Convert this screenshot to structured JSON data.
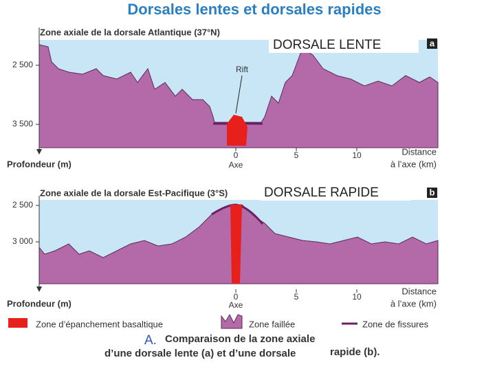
{
  "header": {
    "title": "Dorsales lentes et dorsales rapides"
  },
  "panels": [
    {
      "heading": "Zone axiale de la dorsale Atlantique (37°N)",
      "label": "DORSALE LENTE",
      "badge": "a",
      "depth_axis": {
        "title": "Profondeur (m)",
        "ticks": [
          "2 500",
          "3 500"
        ]
      },
      "distance_axis": {
        "ticks": [
          "0",
          "5",
          "10"
        ],
        "axis_label": "Axe",
        "title_lines": [
          "Distance",
          "à l’axe (km)"
        ]
      },
      "annotation": "Rift"
    },
    {
      "heading": "Zone axiale de la dorsale Est-Pacifique (3°S)",
      "label": "DORSALE RAPIDE",
      "badge": "b",
      "depth_axis": {
        "title": "Profondeur (m)",
        "ticks": [
          "2 500",
          "3 000"
        ]
      },
      "distance_axis": {
        "ticks": [
          "0",
          "5",
          "10"
        ],
        "axis_label": "Axe",
        "title_lines": [
          "Distance",
          "à l’axe (km)"
        ]
      }
    }
  ],
  "legend": [
    "Zone d’épanchement basaltique",
    "Zone faillée",
    "Zone de fissures"
  ],
  "caption": {
    "number": "A.",
    "lines": [
      "Comparaison de la zone axiale",
      "d’une dorsale lente (a) et d’une dorsale",
      "rapide (b)."
    ]
  }
}
